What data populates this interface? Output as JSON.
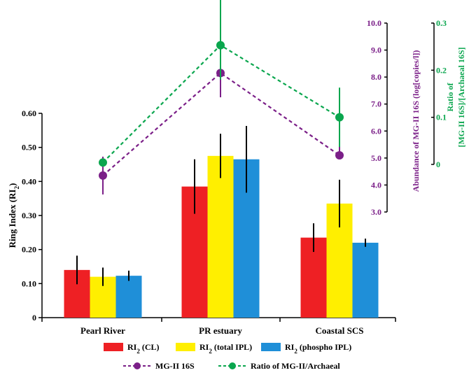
{
  "chart_data": {
    "type": "bar",
    "categories": [
      "Pearl River",
      "PR estuary",
      "Coastal SCS"
    ],
    "bar_series": [
      {
        "name": "RI2 (CL)",
        "label": "RI",
        "sub": "2",
        "suffix": " (CL)",
        "color": "#ee2024",
        "values": [
          0.14,
          0.385,
          0.235
        ],
        "errors": [
          0.042,
          0.08,
          0.042
        ]
      },
      {
        "name": "RI2 (total IPL)",
        "label": "RI",
        "sub": "2",
        "suffix": " (total IPL)",
        "color": "#ffef00",
        "values": [
          0.12,
          0.475,
          0.335
        ],
        "errors": [
          0.027,
          0.065,
          0.07
        ]
      },
      {
        "name": "RI2 (phospho IPL)",
        "label": "RI",
        "sub": "2",
        "suffix": " (phospho IPL)",
        "color": "#1f8fd8",
        "values": [
          0.123,
          0.465,
          0.22
        ],
        "errors": [
          0.015,
          0.098,
          0.012
        ]
      }
    ],
    "line_series": [
      {
        "name": "MG-II 16S",
        "color": "#7b1f88",
        "axis": "right1",
        "values": [
          4.35,
          8.15,
          5.1
        ],
        "errors_up": [
          0.7,
          0.7,
          2.1
        ],
        "errors_down": [
          0.7,
          0.9,
          0.0
        ]
      },
      {
        "name": "Ratio of MG-II/Archaeal",
        "color": "#0aa64e",
        "axis": "right2",
        "values": [
          0.004,
          0.253,
          0.1
        ],
        "errors_up": [
          0,
          0.1,
          0.063
        ],
        "errors_down": [
          0,
          0.073,
          0.063
        ]
      }
    ],
    "left_axis": {
      "label": "Ring Index (RI",
      "label_sub": "2",
      "label_end": ")",
      "ylim": [
        0,
        0.6
      ],
      "ticks": [
        "0",
        "0.10",
        "0.20",
        "0.30",
        "0.40",
        "0.50",
        "0.60"
      ],
      "tick_values": [
        0,
        0.1,
        0.2,
        0.3,
        0.4,
        0.5,
        0.6
      ]
    },
    "right_axis_1": {
      "label": "Abundance of MG-II 16S (log[copies/l])",
      "color": "#7b1f88",
      "ylim": [
        3.0,
        10.0
      ],
      "ticks": [
        "3.0",
        "4.0",
        "5.0",
        "6.0",
        "7.0",
        "8.0",
        "9.0",
        "10.0"
      ],
      "tick_values": [
        3,
        4,
        5,
        6,
        7,
        8,
        9,
        10
      ]
    },
    "right_axis_2": {
      "label_line1": "Ratio of",
      "label_line2": "[MG-II 16S]/[Archaeal 16S]",
      "color": "#0aa64e",
      "ylim": [
        0,
        0.3
      ],
      "ticks": [
        "0",
        "0.1",
        "0.2",
        "0.3"
      ],
      "tick_values": [
        0,
        0.1,
        0.2,
        0.3
      ]
    },
    "legend_position": "bottom"
  }
}
